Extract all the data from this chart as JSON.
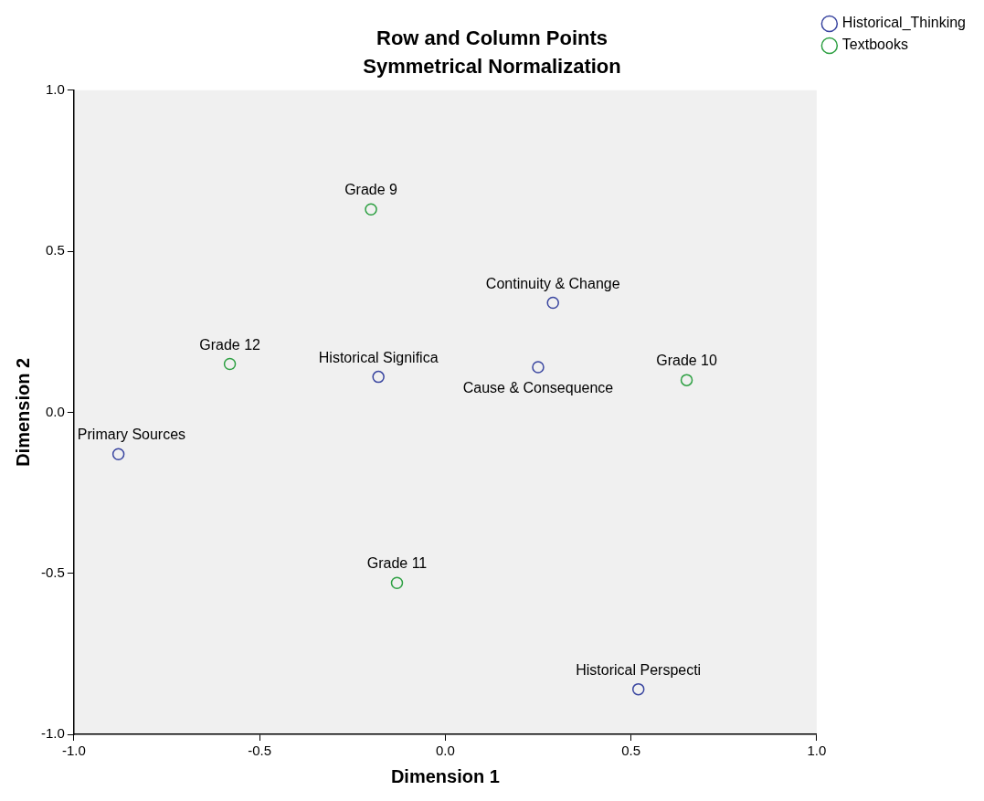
{
  "chart_data": {
    "type": "scatter",
    "title": "Row and Column Points",
    "subtitle": "Symmetrical Normalization",
    "xlabel": "Dimension 1",
    "ylabel": "Dimension 2",
    "series": [
      {
        "name": "Historical_Thinking",
        "color": "#3a46a0",
        "x": [
          -0.88,
          -0.18,
          0.29,
          0.25,
          0.52
        ],
        "values": [
          -0.13,
          0.11,
          0.34,
          0.14,
          -0.86
        ]
      },
      {
        "name": "Textbooks",
        "color": "#2ea043",
        "x": [
          -0.2,
          -0.58,
          0.65,
          -0.13
        ],
        "values": [
          0.63,
          0.15,
          0.1,
          -0.53
        ]
      }
    ],
    "annotations": [
      {
        "text": "Primary Sources",
        "x": -0.88,
        "y": -0.13
      },
      {
        "text": "Historical Significa",
        "x": -0.18,
        "y": 0.11
      },
      {
        "text": "Continuity & Change",
        "x": 0.29,
        "y": 0.34
      },
      {
        "text": "Cause & Consequence",
        "x": 0.25,
        "y": 0.14
      },
      {
        "text": "Historical Perspecti",
        "x": 0.52,
        "y": -0.86
      },
      {
        "text": "Grade 9",
        "x": -0.2,
        "y": 0.63
      },
      {
        "text": "Grade 12",
        "x": -0.58,
        "y": 0.15
      },
      {
        "text": "Grade 10",
        "x": 0.65,
        "y": 0.1
      },
      {
        "text": "Grade 11",
        "x": -0.13,
        "y": -0.53
      }
    ],
    "xlim": [
      -1,
      1
    ],
    "ylim": [
      -1,
      1
    ],
    "xticks": [
      {
        "value": -1,
        "label": "-1.0"
      },
      {
        "value": -0.5,
        "label": "-0.5"
      },
      {
        "value": 0,
        "label": "0.0"
      },
      {
        "value": 0.5,
        "label": "0.5"
      },
      {
        "value": 1,
        "label": "1.0"
      }
    ],
    "yticks": [
      {
        "value": -1,
        "label": "-1.0"
      },
      {
        "value": -0.5,
        "label": "-0.5"
      },
      {
        "value": 0,
        "label": "0.0"
      },
      {
        "value": 0.5,
        "label": "0.5"
      },
      {
        "value": 1,
        "label": "1.0"
      }
    ],
    "grid": false,
    "legend": "top right",
    "marker": "circle"
  }
}
